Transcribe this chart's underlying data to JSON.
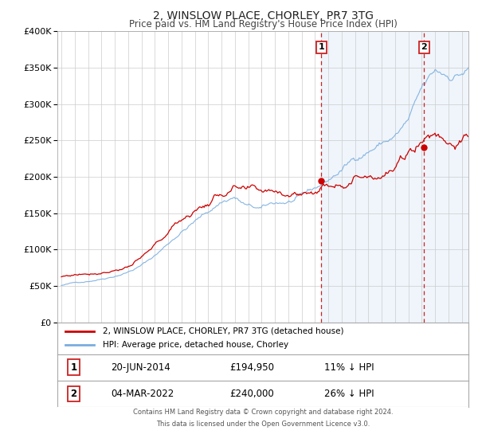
{
  "title": "2, WINSLOW PLACE, CHORLEY, PR7 3TG",
  "subtitle": "Price paid vs. HM Land Registry's House Price Index (HPI)",
  "ylim": [
    0,
    400000
  ],
  "yticks": [
    0,
    50000,
    100000,
    150000,
    200000,
    250000,
    300000,
    350000,
    400000
  ],
  "ytick_labels": [
    "£0",
    "£50K",
    "£100K",
    "£150K",
    "£200K",
    "£250K",
    "£300K",
    "£350K",
    "£400K"
  ],
  "xlim_start": 1994.7,
  "xlim_end": 2025.5,
  "xticks": [
    1995,
    1996,
    1997,
    1998,
    1999,
    2000,
    2001,
    2002,
    2003,
    2004,
    2005,
    2006,
    2007,
    2008,
    2009,
    2010,
    2011,
    2012,
    2013,
    2014,
    2015,
    2016,
    2017,
    2018,
    2019,
    2020,
    2021,
    2022,
    2023,
    2024,
    2025
  ],
  "marker1_x": 2014.47,
  "marker1_y": 194950,
  "marker2_x": 2022.17,
  "marker2_y": 240000,
  "event1_date": "20-JUN-2014",
  "event1_price": "£194,950",
  "event1_hpi": "11% ↓ HPI",
  "event2_date": "04-MAR-2022",
  "event2_price": "£240,000",
  "event2_hpi": "26% ↓ HPI",
  "legend_line1": "2, WINSLOW PLACE, CHORLEY, PR7 3TG (detached house)",
  "legend_line2": "HPI: Average price, detached house, Chorley",
  "red_line_color": "#cc0000",
  "blue_line_color": "#7aade0",
  "shade_color": "#ddeeff",
  "background_color": "#ffffff",
  "grid_color": "#cccccc",
  "footer1": "Contains HM Land Registry data © Crown copyright and database right 2024.",
  "footer2": "This data is licensed under the Open Government Licence v3.0."
}
